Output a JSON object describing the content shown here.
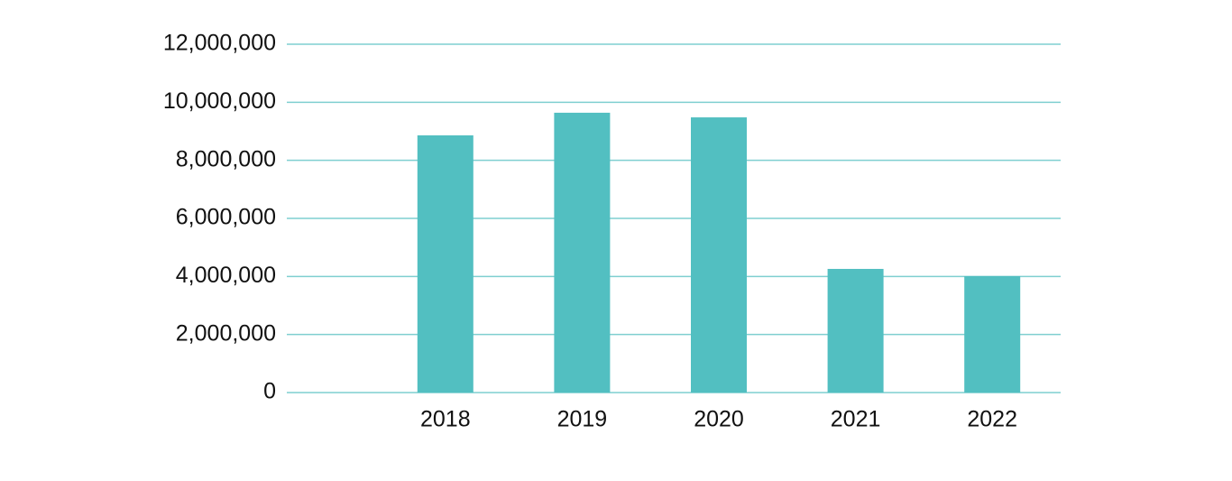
{
  "chart_data": {
    "type": "bar",
    "categories": [
      "2018",
      "2019",
      "2020",
      "2021",
      "2022"
    ],
    "values": [
      8860000,
      9640000,
      9480000,
      4260000,
      4010000
    ],
    "color": "#52bfc1",
    "ylim": [
      0,
      12000000
    ],
    "yticks": [
      0,
      {
        "value": 2000000,
        "label": "2,000,000"
      },
      {
        "value": 4000000,
        "label": "4,000,000"
      },
      {
        "value": 6000000,
        "label": "6,000,000"
      },
      {
        "value": 8000000,
        "label": "8,000,000"
      },
      {
        "value": 10000000,
        "label": "10,000,000"
      },
      {
        "value": 12000000,
        "label": "12,000,000"
      }
    ],
    "grid": true
  }
}
